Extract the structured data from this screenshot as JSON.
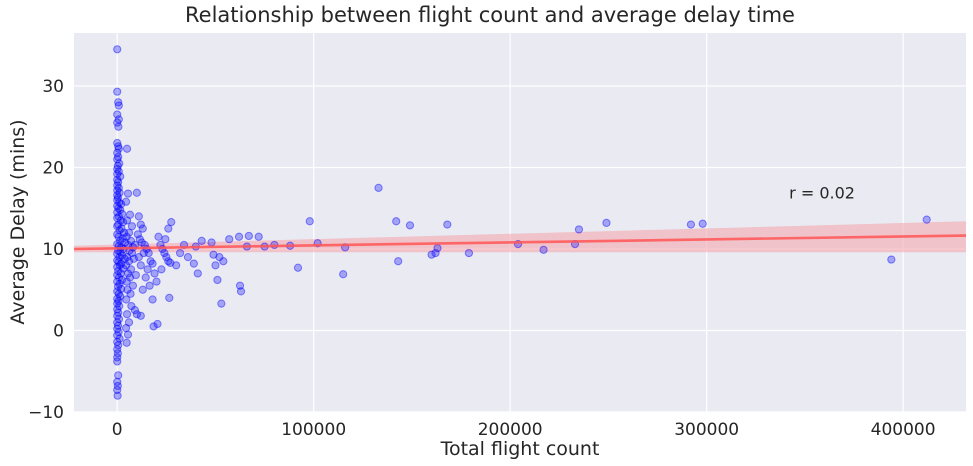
{
  "chart_data": {
    "type": "scatter",
    "title": "Relationship between flight count and average delay time",
    "xlabel": "Total flight count",
    "ylabel": "Average Delay (mins)",
    "xlim": [
      -22000,
      432000
    ],
    "ylim": [
      -10,
      36.5
    ],
    "xticks": [
      0,
      100000,
      200000,
      300000,
      400000
    ],
    "xtick_labels": [
      "0",
      "100000",
      "200000",
      "300000",
      "400000"
    ],
    "yticks": [
      -10,
      0,
      10,
      20,
      30
    ],
    "ytick_labels": [
      "−10",
      "0",
      "10",
      "20",
      "30"
    ],
    "grid": true,
    "background": "#eaeaf2",
    "point_color": "#0000ff",
    "regression_color": "#ff5555",
    "band_color": "#f4a0a8",
    "annotation": {
      "text": "r = 0.02",
      "x": 342000,
      "y": 16.2
    },
    "regression": {
      "x": [
        -22000,
        432000
      ],
      "y": [
        10.0,
        11.65
      ],
      "ci_upper": [
        10.4,
        13.4
      ],
      "ci_lower": [
        9.6,
        9.6
      ]
    },
    "series": [
      {
        "points": [
          [
            0,
            34.5
          ],
          [
            0,
            29.3
          ],
          [
            500,
            28.0
          ],
          [
            800,
            27.6
          ],
          [
            0,
            26.5
          ],
          [
            0,
            25.5
          ],
          [
            800,
            25.9
          ],
          [
            600,
            25.0
          ],
          [
            0,
            23.0
          ],
          [
            500,
            22.6
          ],
          [
            800,
            22.3
          ],
          [
            0,
            21.8
          ],
          [
            500,
            21.3
          ],
          [
            0,
            21.0
          ],
          [
            1000,
            20.5
          ],
          [
            300,
            20.2
          ],
          [
            0,
            19.8
          ],
          [
            800,
            19.5
          ],
          [
            0,
            19.2
          ],
          [
            1500,
            18.9
          ],
          [
            0,
            18.5
          ],
          [
            500,
            18.2
          ],
          [
            0,
            17.8
          ],
          [
            800,
            17.5
          ],
          [
            0,
            17.2
          ],
          [
            1200,
            16.9
          ],
          [
            0,
            16.6
          ],
          [
            400,
            16.3
          ],
          [
            0,
            16.0
          ],
          [
            1000,
            15.7
          ],
          [
            2000,
            15.5
          ],
          [
            0,
            15.3
          ],
          [
            600,
            15.0
          ],
          [
            1500,
            14.8
          ],
          [
            0,
            14.5
          ],
          [
            2500,
            14.3
          ],
          [
            800,
            14.0
          ],
          [
            0,
            13.8
          ],
          [
            1800,
            13.5
          ],
          [
            3000,
            13.3
          ],
          [
            500,
            13.0
          ],
          [
            0,
            12.8
          ],
          [
            2200,
            12.5
          ],
          [
            1200,
            12.3
          ],
          [
            3500,
            12.0
          ],
          [
            0,
            11.8
          ],
          [
            700,
            11.5
          ],
          [
            2800,
            11.3
          ],
          [
            1500,
            11.0
          ],
          [
            4000,
            10.8
          ],
          [
            0,
            10.6
          ],
          [
            900,
            10.4
          ],
          [
            2000,
            10.2
          ],
          [
            3200,
            10.0
          ],
          [
            500,
            9.8
          ],
          [
            1600,
            9.6
          ],
          [
            0,
            9.4
          ],
          [
            2500,
            9.2
          ],
          [
            1100,
            9.0
          ],
          [
            3800,
            8.8
          ],
          [
            0,
            8.6
          ],
          [
            700,
            8.4
          ],
          [
            2000,
            8.2
          ],
          [
            1300,
            8.0
          ],
          [
            0,
            7.8
          ],
          [
            3000,
            7.6
          ],
          [
            500,
            7.3
          ],
          [
            1800,
            7.0
          ],
          [
            0,
            6.8
          ],
          [
            900,
            6.5
          ],
          [
            2400,
            6.2
          ],
          [
            0,
            6.0
          ],
          [
            1200,
            5.7
          ],
          [
            400,
            5.4
          ],
          [
            2000,
            5.1
          ],
          [
            0,
            4.8
          ],
          [
            800,
            4.5
          ],
          [
            1500,
            4.2
          ],
          [
            0,
            3.9
          ],
          [
            600,
            3.6
          ],
          [
            0,
            3.3
          ],
          [
            1000,
            3.0
          ],
          [
            0,
            2.6
          ],
          [
            500,
            2.2
          ],
          [
            0,
            1.8
          ],
          [
            900,
            1.4
          ],
          [
            0,
            1.0
          ],
          [
            400,
            0.6
          ],
          [
            0,
            0.2
          ],
          [
            700,
            -0.2
          ],
          [
            0,
            -0.6
          ],
          [
            1200,
            -1.0
          ],
          [
            0,
            -1.4
          ],
          [
            500,
            -1.8
          ],
          [
            0,
            -2.3
          ],
          [
            300,
            -2.8
          ],
          [
            0,
            -3.3
          ],
          [
            0,
            -3.8
          ],
          [
            500,
            -5.5
          ],
          [
            0,
            -6.3
          ],
          [
            300,
            -6.8
          ],
          [
            0,
            -7.3
          ],
          [
            200,
            -8.0
          ],
          [
            5000,
            22.3
          ],
          [
            5500,
            16.8
          ],
          [
            4500,
            15.8
          ],
          [
            6500,
            14.2
          ],
          [
            5000,
            13.5
          ],
          [
            7500,
            12.8
          ],
          [
            6000,
            12.0
          ],
          [
            4800,
            11.5
          ],
          [
            7000,
            11.0
          ],
          [
            5500,
            10.5
          ],
          [
            8000,
            10.2
          ],
          [
            6200,
            9.8
          ],
          [
            9000,
            10.5
          ],
          [
            7500,
            9.5
          ],
          [
            5000,
            9.0
          ],
          [
            8500,
            8.8
          ],
          [
            6000,
            8.5
          ],
          [
            4500,
            8.0
          ],
          [
            7000,
            7.5
          ],
          [
            5500,
            7.0
          ],
          [
            9500,
            6.8
          ],
          [
            6500,
            6.5
          ],
          [
            4800,
            6.0
          ],
          [
            8000,
            5.5
          ],
          [
            5200,
            5.0
          ],
          [
            6800,
            4.5
          ],
          [
            4600,
            3.8
          ],
          [
            7200,
            3.0
          ],
          [
            5000,
            2.0
          ],
          [
            6000,
            1.0
          ],
          [
            4500,
            0.3
          ],
          [
            5500,
            -0.5
          ],
          [
            4800,
            -1.5
          ],
          [
            10000,
            16.9
          ],
          [
            11000,
            14.0
          ],
          [
            12000,
            13.0
          ],
          [
            13000,
            12.5
          ],
          [
            10500,
            11.8
          ],
          [
            11500,
            11.2
          ],
          [
            12500,
            10.8
          ],
          [
            14000,
            10.5
          ],
          [
            15000,
            10.0
          ],
          [
            13500,
            9.5
          ],
          [
            11000,
            9.0
          ],
          [
            16000,
            9.5
          ],
          [
            17000,
            8.5
          ],
          [
            12000,
            8.0
          ],
          [
            18000,
            8.2
          ],
          [
            15500,
            7.5
          ],
          [
            19000,
            7.0
          ],
          [
            14500,
            6.5
          ],
          [
            20000,
            6.0
          ],
          [
            16500,
            5.5
          ],
          [
            13000,
            5.0
          ],
          [
            18000,
            3.8
          ],
          [
            21000,
            11.5
          ],
          [
            22000,
            10.5
          ],
          [
            23000,
            10.0
          ],
          [
            24000,
            9.5
          ],
          [
            25000,
            9.0
          ],
          [
            26000,
            8.5
          ],
          [
            27000,
            8.3
          ],
          [
            22500,
            7.5
          ],
          [
            20500,
            0.8
          ],
          [
            18500,
            0.5
          ],
          [
            26500,
            4.0
          ],
          [
            24500,
            11.2
          ],
          [
            27500,
            13.3
          ],
          [
            26000,
            12.5
          ],
          [
            12000,
            1.8
          ],
          [
            9000,
            2.5
          ],
          [
            10000,
            2.0
          ],
          [
            30000,
            8.0
          ],
          [
            32000,
            9.5
          ],
          [
            34000,
            10.5
          ],
          [
            36000,
            9.0
          ],
          [
            39000,
            8.2
          ],
          [
            40000,
            10.3
          ],
          [
            41000,
            7.0
          ],
          [
            43000,
            11.0
          ],
          [
            48000,
            10.8
          ],
          [
            49000,
            9.3
          ],
          [
            50000,
            8.0
          ],
          [
            51000,
            6.2
          ],
          [
            52000,
            9.0
          ],
          [
            53000,
            3.3
          ],
          [
            54000,
            8.5
          ],
          [
            57000,
            11.2
          ],
          [
            62000,
            11.5
          ],
          [
            62500,
            5.5
          ],
          [
            63000,
            4.8
          ],
          [
            66000,
            10.3
          ],
          [
            67000,
            11.6
          ],
          [
            72000,
            11.5
          ],
          [
            75000,
            10.3
          ],
          [
            80000,
            10.5
          ],
          [
            88000,
            10.4
          ],
          [
            92000,
            7.7
          ],
          [
            98000,
            13.4
          ],
          [
            102000,
            10.7
          ],
          [
            116000,
            10.2
          ],
          [
            115000,
            6.9
          ],
          [
            133000,
            17.5
          ],
          [
            142000,
            13.4
          ],
          [
            143000,
            8.5
          ],
          [
            149000,
            12.9
          ],
          [
            160000,
            9.3
          ],
          [
            162000,
            9.5
          ],
          [
            163000,
            10.1
          ],
          [
            168000,
            13.0
          ],
          [
            179000,
            9.5
          ],
          [
            204000,
            10.6
          ],
          [
            217000,
            9.9
          ],
          [
            233000,
            10.6
          ],
          [
            235000,
            12.4
          ],
          [
            249000,
            13.2
          ],
          [
            292000,
            13.0
          ],
          [
            298000,
            13.1
          ],
          [
            394000,
            8.7
          ],
          [
            412000,
            13.6
          ]
        ]
      }
    ]
  }
}
